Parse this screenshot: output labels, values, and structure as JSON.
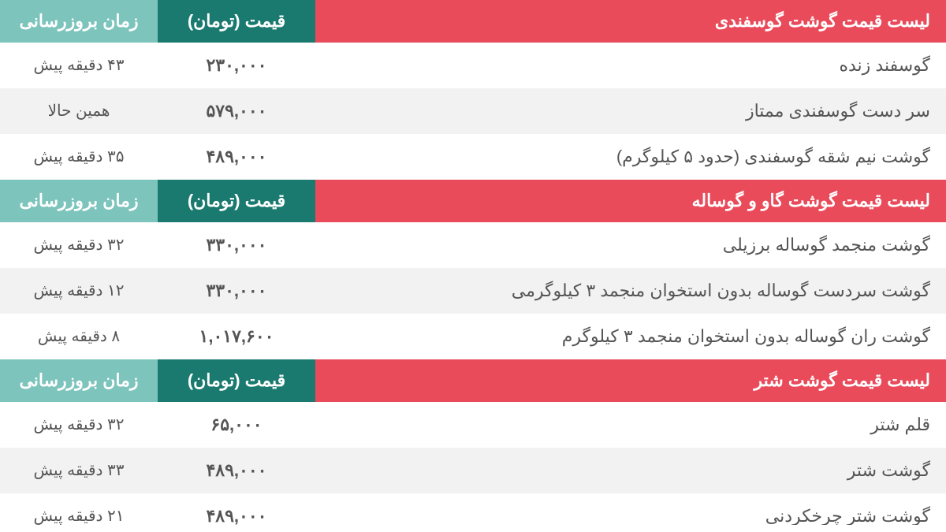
{
  "colors": {
    "header_title_bg": "#e94b5b",
    "header_price_bg": "#1a7a6f",
    "header_time_bg": "#7cc4bc",
    "header_text": "#ffffff",
    "row_odd_bg": "#ffffff",
    "row_even_bg": "#f2f2f2",
    "cell_text": "#555555"
  },
  "columns": {
    "price_label": "قیمت (تومان)",
    "time_label": "زمان بروزرسانی"
  },
  "sections": [
    {
      "title": "لیست قیمت گوشت گوسفندی",
      "rows": [
        {
          "name": "گوسفند زنده",
          "price": "۲۳۰,۰۰۰",
          "time": "۴۳ دقیقه پیش"
        },
        {
          "name": "سر دست گوسفندی ممتاز",
          "price": "۵۷۹,۰۰۰",
          "time": "همین حالا"
        },
        {
          "name": "گوشت نیم شقه گوسفندی (حدود ۵ کیلوگرم)",
          "price": "۴۸۹,۰۰۰",
          "time": "۳۵ دقیقه پیش"
        }
      ]
    },
    {
      "title": "لیست قیمت گوشت گاو و گوساله",
      "rows": [
        {
          "name": "گوشت منجمد گوساله برزیلی",
          "price": "۳۳۰,۰۰۰",
          "time": "۳۲ دقیقه پیش"
        },
        {
          "name": "گوشت سردست گوساله بدون استخوان منجمد ۳ کیلوگرمی",
          "price": "۳۳۰,۰۰۰",
          "time": "۱۲ دقیقه پیش"
        },
        {
          "name": "گوشت ران گوساله بدون استخوان منجمد ۳ کیلوگرم",
          "price": "۱,۰۱۷,۶۰۰",
          "time": "۸ دقیقه پیش"
        }
      ]
    },
    {
      "title": "لیست قیمت گوشت شتر",
      "rows": [
        {
          "name": "قلم شتر",
          "price": "۶۵,۰۰۰",
          "time": "۳۲ دقیقه پیش"
        },
        {
          "name": "گوشت شتر",
          "price": "۴۸۹,۰۰۰",
          "time": "۳۳ دقیقه پیش"
        },
        {
          "name": "گوشت شتر چرخکردنی",
          "price": "۴۸۹,۰۰۰",
          "time": "۲۱ دقیقه پیش"
        }
      ]
    }
  ]
}
